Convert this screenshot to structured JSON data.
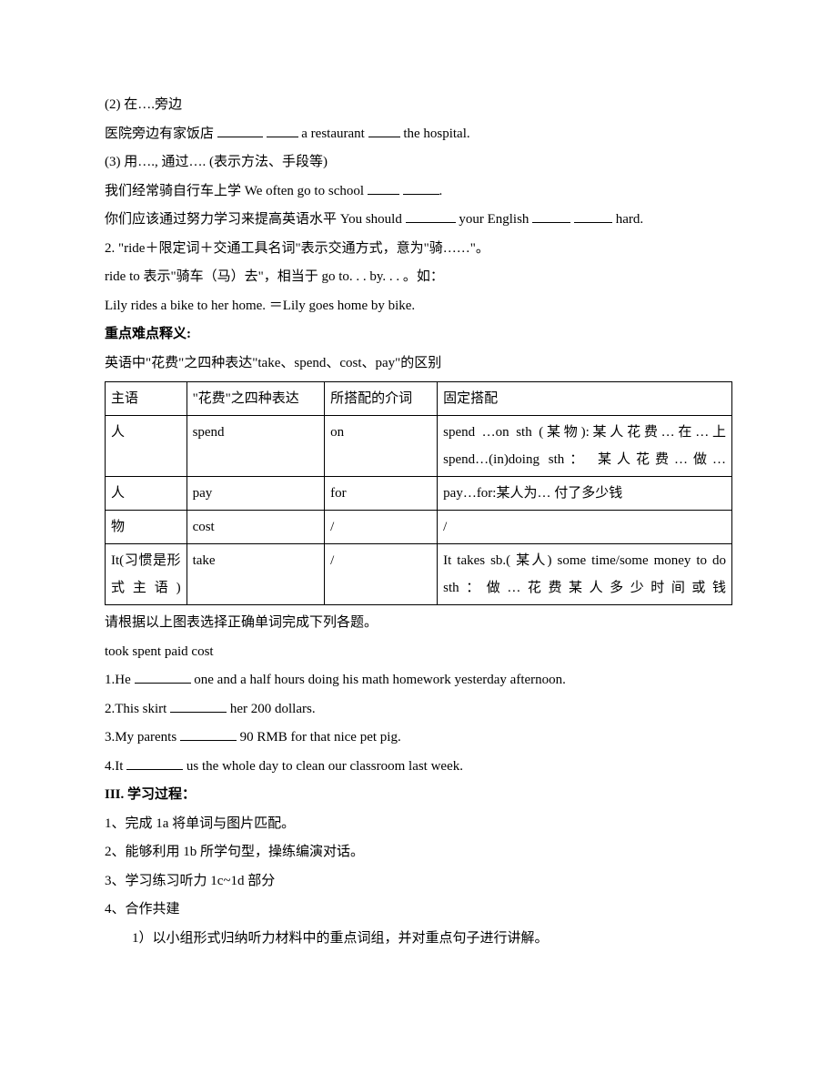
{
  "lines": {
    "l1": "(2)  在….旁边",
    "l2_a": "医院旁边有家饭店  ",
    "l2_b": " a restaurant ",
    "l2_c": " the hospital.",
    "l3": "(3)  用…., 通过…. (表示方法、手段等)",
    "l4_a": "我们经常骑自行车上学  We often go to school ",
    "l4_b": ".",
    "l5_a": "你们应该通过努力学习来提高英语水平  You should ",
    "l5_b": " your English ",
    "l5_c": " hard.",
    "l6": "2.  \"ride＋限定词＋交通工具名词\"表示交通方式，意为\"骑……\"。",
    "l7": "ride to 表示\"骑车（马）去\"，相当于 go to. . . by. . . 。如：",
    "l8": "Lily rides a bike to her home.  ＝Lily goes home by bike.",
    "l9": "重点难点释义:",
    "l10": "英语中\"花费\"之四种表达\"take、spend、cost、pay\"的区别",
    "l11": "请根据以上图表选择正确单词完成下列各题。",
    "l12": "took     spent    paid    cost",
    "l13_a": "1.He ",
    "l13_b": " one and a half hours doing his math  homework yesterday afternoon.",
    "l14_a": "2.This skirt ",
    "l14_b": " her 200 dollars.",
    "l15_a": "3.My parents ",
    "l15_b": " 90 RMB for that nice pet pig.",
    "l16_a": "4.It ",
    "l16_b": " us the whole day to clean our classroom last week.",
    "l17": "III.  学习过程：",
    "l18": "1、完成 1a  将单词与图片匹配。",
    "l19": "2、能够利用 1b 所学句型，操练编演对话。",
    "l20": "3、学习练习听力 1c~1d 部分",
    "l21": "4、合作共建",
    "l22": "1）以小组形式归纳听力材料中的重点词组，并对重点句子进行讲解。"
  },
  "table": {
    "header": {
      "c1": "主语",
      "c2": "\"花费\"之四种表达",
      "c3": "所搭配的介词",
      "c4": "固定搭配"
    },
    "rows": [
      {
        "c1": "人",
        "c2": "spend",
        "c3": "on",
        "c4": "spend …on sth (某物):某人花费…在…上\nspend…(in)doing sth： 某人花费…做…"
      },
      {
        "c1": "人",
        "c2": "pay",
        "c3": "for",
        "c4": "pay…for:某人为…   付了多少钱"
      },
      {
        "c1": "物",
        "c2": "cost",
        "c3": "/",
        "c4": "/"
      },
      {
        "c1": "It(习惯是形式主语)",
        "c2": "take",
        "c3": "/",
        "c4": "It takes sb.( 某人) some time/some money to do sth：做…花费某人多少时间或钱"
      }
    ]
  }
}
